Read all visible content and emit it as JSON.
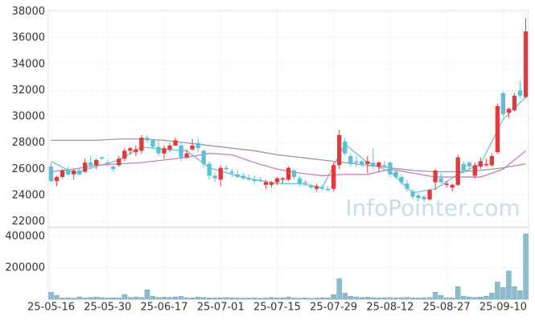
{
  "chart_data": [
    {
      "type": "candlestick",
      "categories": [
        "25-05-16",
        null,
        null,
        null,
        null,
        null,
        null,
        null,
        null,
        null,
        "25-05-30",
        null,
        null,
        null,
        null,
        null,
        null,
        null,
        null,
        null,
        "25-06-17",
        null,
        null,
        null,
        null,
        null,
        null,
        null,
        null,
        null,
        "25-07-01",
        null,
        null,
        null,
        null,
        null,
        null,
        null,
        null,
        null,
        "25-07-15",
        null,
        null,
        null,
        null,
        null,
        null,
        null,
        null,
        null,
        "25-07-29",
        null,
        null,
        null,
        null,
        null,
        null,
        null,
        null,
        null,
        "25-08-12",
        null,
        null,
        null,
        null,
        null,
        null,
        null,
        null,
        null,
        "25-08-27",
        null,
        null,
        null,
        null,
        null,
        null,
        null,
        null,
        null,
        "25-09-10",
        null,
        null,
        null,
        null
      ],
      "open": [
        26200,
        25100,
        25400,
        26000,
        25600,
        25900,
        25800,
        26500,
        26300,
        26900,
        26500,
        26200,
        26300,
        26800,
        27400,
        27300,
        27400,
        28400,
        28200,
        27700,
        27200,
        27500,
        27800,
        27800,
        26900,
        27500,
        28000,
        27400,
        26400,
        25500,
        25200,
        26100,
        25800,
        25600,
        25500,
        25300,
        25200,
        25200,
        24800,
        24800,
        25000,
        25200,
        25200,
        25900,
        25300,
        25000,
        24700,
        24500,
        24600,
        24500,
        24500,
        26300,
        28100,
        27000,
        26600,
        26600,
        26400,
        26500,
        26200,
        26300,
        26500,
        25800,
        25400,
        24900,
        24300,
        24000,
        23900,
        23700,
        25000,
        25300,
        24800,
        24600,
        24800,
        26400,
        26500,
        25500,
        26200,
        26300,
        26300,
        27300,
        31800,
        30300,
        30500,
        32000,
        31500
      ],
      "high": [
        26500,
        25500,
        26000,
        26200,
        26000,
        26100,
        26800,
        27000,
        26800,
        27000,
        26700,
        26300,
        27000,
        27600,
        27700,
        27800,
        28600,
        28600,
        28300,
        28200,
        27800,
        28000,
        28400,
        28100,
        27500,
        28300,
        28400,
        27500,
        26600,
        25700,
        26300,
        26300,
        26000,
        25900,
        25700,
        25600,
        25500,
        25400,
        25200,
        25100,
        25400,
        25400,
        26200,
        26000,
        25500,
        25200,
        24900,
        24900,
        24800,
        24700,
        26500,
        29000,
        28400,
        27200,
        27000,
        26700,
        27000,
        27600,
        26600,
        26600,
        26600,
        25900,
        25600,
        25200,
        24500,
        24200,
        24000,
        24500,
        26000,
        25700,
        25100,
        24900,
        27100,
        26600,
        26600,
        26500,
        26900,
        26800,
        27200,
        31000,
        31900,
        30700,
        31800,
        32700,
        37500
      ],
      "low": [
        25000,
        24700,
        25300,
        25500,
        25200,
        25500,
        25700,
        26000,
        26000,
        26700,
        26200,
        25800,
        26200,
        26600,
        27100,
        27000,
        27200,
        28000,
        27600,
        27000,
        26800,
        27300,
        27800,
        26600,
        26800,
        27400,
        27300,
        26100,
        25200,
        25000,
        24700,
        25900,
        25400,
        25300,
        25200,
        25100,
        24900,
        25000,
        24500,
        24600,
        24800,
        24900,
        25100,
        25200,
        24700,
        24700,
        24500,
        24300,
        24400,
        24300,
        24300,
        26000,
        27000,
        26200,
        26200,
        26200,
        25700,
        26000,
        25800,
        26100,
        25400,
        25300,
        24800,
        24300,
        23700,
        23600,
        23500,
        23600,
        24400,
        24900,
        24600,
        24300,
        24700,
        25700,
        25900,
        25300,
        26000,
        26200,
        26200,
        27200,
        30000,
        29900,
        30400,
        31400,
        31400
      ],
      "close": [
        25100,
        25400,
        25900,
        25600,
        25900,
        25600,
        26500,
        26300,
        26700,
        26800,
        26400,
        26000,
        26800,
        27400,
        27600,
        27500,
        28400,
        28200,
        27700,
        27200,
        27600,
        27800,
        28200,
        26900,
        27200,
        27800,
        27600,
        26400,
        25500,
        25300,
        26100,
        26000,
        25700,
        25400,
        25300,
        25200,
        25100,
        25100,
        25000,
        25000,
        25300,
        25300,
        26100,
        25400,
        24900,
        24900,
        24600,
        24700,
        24500,
        24400,
        26300,
        28600,
        27200,
        26400,
        26500,
        26300,
        26600,
        26200,
        26500,
        26200,
        25600,
        25400,
        25000,
        24500,
        23900,
        23800,
        23700,
        24400,
        25900,
        25000,
        24900,
        24800,
        26900,
        25900,
        26200,
        26300,
        26600,
        26400,
        27000,
        30800,
        30200,
        30600,
        31600,
        31600,
        36500
      ],
      "up_color": "#e0393e",
      "down_color": "#5bbfd6",
      "lines": [
        {
          "color": "#6ec4cc",
          "x": [
            0,
            4,
            8,
            12,
            16,
            20,
            24,
            28,
            32,
            36,
            40,
            44,
            48,
            52,
            56,
            60,
            64,
            68,
            72,
            76,
            80,
            84
          ],
          "values": [
            26600,
            25700,
            26200,
            26700,
            27700,
            27500,
            27400,
            26100,
            25600,
            25200,
            24900,
            24900,
            24600,
            27900,
            26500,
            25800,
            24200,
            24500,
            25600,
            26400,
            29800,
            31500
          ]
        },
        {
          "color": "#c77dc4",
          "x": [
            0,
            4,
            8,
            12,
            16,
            20,
            24,
            28,
            32,
            36,
            40,
            44,
            48,
            52,
            56,
            60,
            64,
            68,
            72,
            76,
            80,
            84
          ],
          "values": [
            25800,
            26000,
            26300,
            26400,
            26500,
            26700,
            26900,
            27200,
            27100,
            26500,
            26000,
            25700,
            25500,
            25600,
            25600,
            26000,
            25700,
            25400,
            25400,
            25400,
            26000,
            27400
          ]
        },
        {
          "color": "#999999",
          "x": [
            0,
            4,
            8,
            12,
            16,
            20,
            24,
            28,
            32,
            36,
            40,
            44,
            48,
            52,
            56,
            60,
            64,
            68,
            72,
            76,
            80,
            84
          ],
          "values": [
            28200,
            28200,
            28200,
            28300,
            28300,
            28200,
            28000,
            27800,
            27600,
            27400,
            27100,
            26900,
            26700,
            26500,
            26300,
            26100,
            25900,
            25800,
            25800,
            25900,
            26100,
            26400
          ]
        }
      ],
      "ylim": [
        21600,
        38100
      ],
      "yticks": [
        22000,
        24000,
        26000,
        28000,
        30000,
        32000,
        34000,
        36000,
        38000
      ],
      "grid": true,
      "annotation": "InfoPointer.com"
    },
    {
      "type": "bar",
      "color": "#8dbccd",
      "values": [
        45000,
        25000,
        8000,
        10000,
        7000,
        15000,
        9000,
        12000,
        14000,
        11000,
        8000,
        10000,
        9000,
        30000,
        12000,
        15000,
        11000,
        60000,
        20000,
        12000,
        14000,
        12000,
        15000,
        18000,
        10000,
        9000,
        14000,
        12000,
        9000,
        8000,
        10000,
        11000,
        9000,
        8000,
        7000,
        8000,
        9000,
        7000,
        8000,
        12000,
        9000,
        10000,
        15000,
        8000,
        7000,
        9000,
        6000,
        8000,
        10000,
        9000,
        30000,
        130000,
        40000,
        20000,
        15000,
        12000,
        14000,
        10000,
        9000,
        10000,
        11000,
        9000,
        10000,
        12000,
        9000,
        8000,
        10000,
        12000,
        45000,
        25000,
        10000,
        9000,
        80000,
        20000,
        15000,
        12000,
        14000,
        20000,
        40000,
        110000,
        75000,
        180000,
        80000,
        55000,
        415000
      ],
      "ylim": [
        0,
        455000
      ],
      "yticks": [
        200000,
        400000
      ],
      "grid": true
    }
  ]
}
